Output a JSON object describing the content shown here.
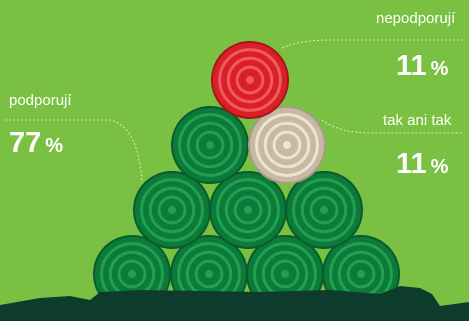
{
  "chart_data": {
    "type": "pie",
    "title": "",
    "unit": "%",
    "slices": [
      {
        "label": "podporují",
        "value": 77,
        "color": "#0b7a3b"
      },
      {
        "label": "nepodporují",
        "value": 11,
        "color": "#d92027"
      },
      {
        "label": "tak ani tak",
        "value": 11,
        "color": "#c7b9a2"
      }
    ],
    "background_color": "#7ac143",
    "ground_color": "#0d3b2c"
  }
}
